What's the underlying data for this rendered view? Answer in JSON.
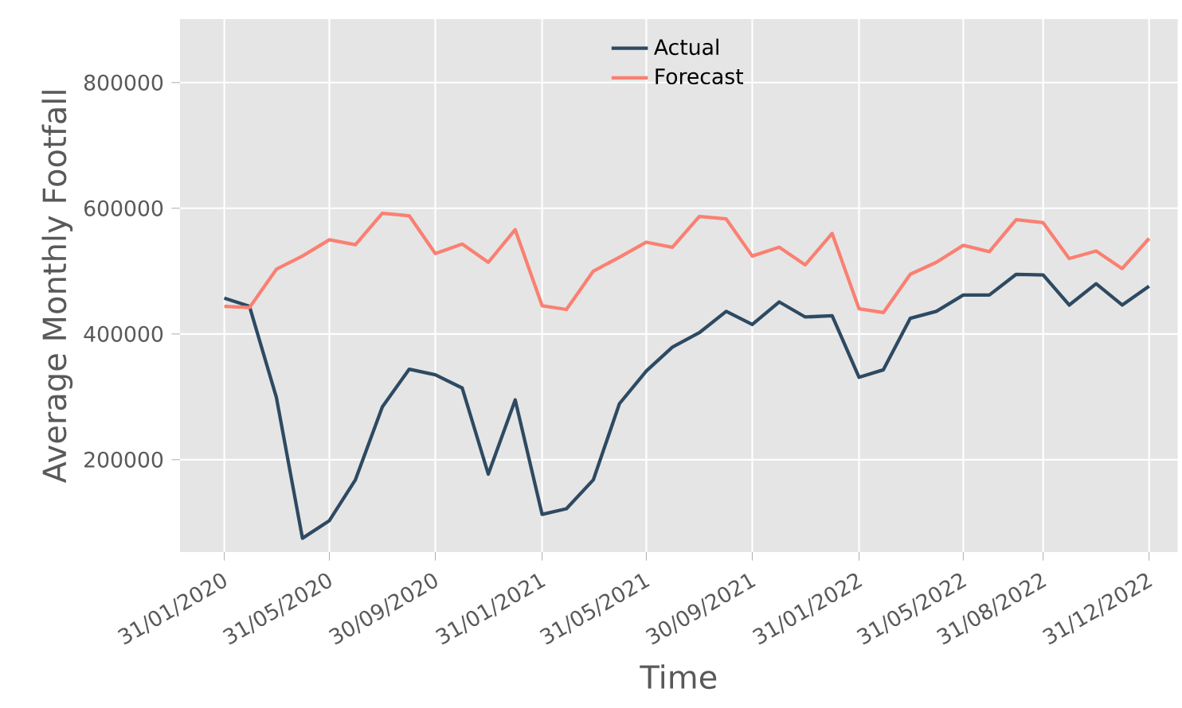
{
  "chart_data": {
    "type": "line",
    "xlabel": "Time",
    "ylabel": "Average Monthly Footfall",
    "x": [
      "2020-01-31",
      "2020-02-29",
      "2020-03-31",
      "2020-04-30",
      "2020-05-31",
      "2020-06-30",
      "2020-07-31",
      "2020-08-31",
      "2020-09-30",
      "2020-10-31",
      "2020-11-30",
      "2020-12-31",
      "2021-01-31",
      "2021-02-28",
      "2021-03-31",
      "2021-04-30",
      "2021-05-31",
      "2021-06-30",
      "2021-07-31",
      "2021-08-31",
      "2021-09-30",
      "2021-10-31",
      "2021-11-30",
      "2021-12-31",
      "2022-01-31",
      "2022-02-28",
      "2022-03-31",
      "2022-04-30",
      "2022-05-31",
      "2022-06-30",
      "2022-07-31",
      "2022-08-31",
      "2022-09-30",
      "2022-10-31",
      "2022-11-30",
      "2022-12-31"
    ],
    "series": [
      {
        "name": "Actual",
        "color": "#2e4a62",
        "values": [
          457000,
          444000,
          299000,
          75000,
          103000,
          168000,
          284000,
          344000,
          335000,
          314000,
          177000,
          295000,
          113000,
          122000,
          168000,
          289000,
          341000,
          379000,
          402000,
          436000,
          415000,
          451000,
          427000,
          429000,
          331000,
          343000,
          425000,
          436000,
          462000,
          462000,
          495000,
          494000,
          446000,
          480000,
          446000,
          476000
        ]
      },
      {
        "name": "Forecast",
        "color": "#fa8072",
        "values": [
          444000,
          442000,
          503000,
          524000,
          550000,
          542000,
          592000,
          588000,
          528000,
          543000,
          514000,
          566000,
          445000,
          439000,
          500000,
          522000,
          546000,
          538000,
          587000,
          583000,
          524000,
          538000,
          510000,
          560000,
          440000,
          434000,
          495000,
          514000,
          541000,
          531000,
          582000,
          577000,
          520000,
          532000,
          504000,
          552000
        ]
      }
    ],
    "xlim": [
      "2019-12-11",
      "2023-02-02"
    ],
    "xticks": [
      {
        "value": "2020-01-31",
        "label": "31/01/2020"
      },
      {
        "value": "2020-05-31",
        "label": "31/05/2020"
      },
      {
        "value": "2020-09-30",
        "label": "30/09/2020"
      },
      {
        "value": "2021-01-31",
        "label": "31/01/2021"
      },
      {
        "value": "2021-05-31",
        "label": "31/05/2021"
      },
      {
        "value": "2021-09-30",
        "label": "30/09/2021"
      },
      {
        "value": "2022-01-31",
        "label": "31/01/2022"
      },
      {
        "value": "2022-05-31",
        "label": "31/05/2022"
      },
      {
        "value": "2022-08-31",
        "label": "31/08/2022"
      },
      {
        "value": "2022-12-31",
        "label": "31/12/2022"
      }
    ],
    "ylim": [
      53000,
      901000
    ],
    "yticks": [
      200000,
      400000,
      600000,
      800000
    ],
    "grid": true,
    "legend": "top",
    "marker": "none",
    "line_style": "solid"
  }
}
